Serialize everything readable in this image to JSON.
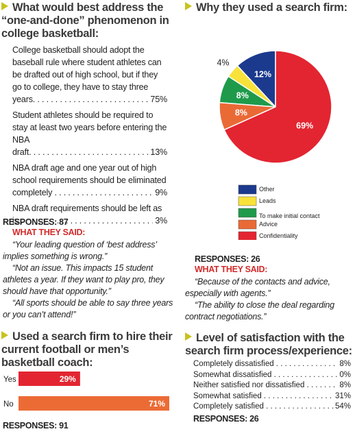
{
  "survey1": {
    "title": "What would best address the “one-and-done” phenomenon in college basketball:",
    "options": [
      {
        "text": "College basketball should adopt the baseball rule where student athletes can be drafted out of high school, but if they go to college, they have to stay three years.",
        "value": "75%"
      },
      {
        "text": "Student athletes should be required to stay at least two years before entering the NBA draft.",
        "value": "13%"
      },
      {
        "text": "NBA draft age and one year out of high school requirements should be eliminated completely",
        "value": "9%"
      },
      {
        "text": "NBA draft requirements should be left as is",
        "value": "3%"
      }
    ],
    "responses": "RESPONSES: 87",
    "said_heading": "WHAT THEY SAID:",
    "quotes": [
      "“Your leading question of ‘best address’ implies something is wrong.”",
      "“Not an issue. This impacts 15 student athletes a year. If they want to play pro, they should have that opportunity.”",
      "“All sports should be able to say three years or you can’t attend!”"
    ]
  },
  "chart_data": [
    {
      "type": "pie",
      "title": "Why they used a search firm:",
      "categories": [
        "Other",
        "Leads",
        "To make initial contact",
        "Advice",
        "Confidentiality"
      ],
      "values": [
        12,
        4,
        8,
        8,
        69
      ],
      "value_labels": [
        "12%",
        "4%",
        "8%",
        "8%",
        "69%"
      ],
      "colors": [
        "#1b3a8e",
        "#f8e23a",
        "#1f9a4b",
        "#ea6a36",
        "#e32531"
      ]
    },
    {
      "type": "bar",
      "orientation": "horizontal",
      "title": "Used a search firm to hire their current football or men’s basketball coach:",
      "categories": [
        "Yes",
        "No"
      ],
      "values": [
        29,
        71
      ],
      "value_labels": [
        "29%",
        "71%"
      ],
      "colors": [
        "#e32531",
        "#ec6b35"
      ]
    }
  ],
  "pie_notes": {
    "responses": "RESPONSES: 26",
    "said_heading": "WHAT THEY SAID:",
    "quotes": [
      "“Because of the contacts and advice, especially with agents.”",
      "“The ability to close the deal regarding contract negotiations.”"
    ]
  },
  "bar_notes": {
    "responses": "RESPONSES: 91"
  },
  "survey2": {
    "title": "Level of satisfaction with the search firm process/experience:",
    "options": [
      {
        "text": "Completely dissatisfied",
        "value": "8%"
      },
      {
        "text": "Somewhat dissatisfied",
        "value": "0%"
      },
      {
        "text": "Neither satisfied nor dissatisfied",
        "value": "8%"
      },
      {
        "text": "Somewhat satisfied",
        "value": "31%"
      },
      {
        "text": "Completely satisfied",
        "value": "54%"
      }
    ],
    "responses": "RESPONSES: 26"
  }
}
